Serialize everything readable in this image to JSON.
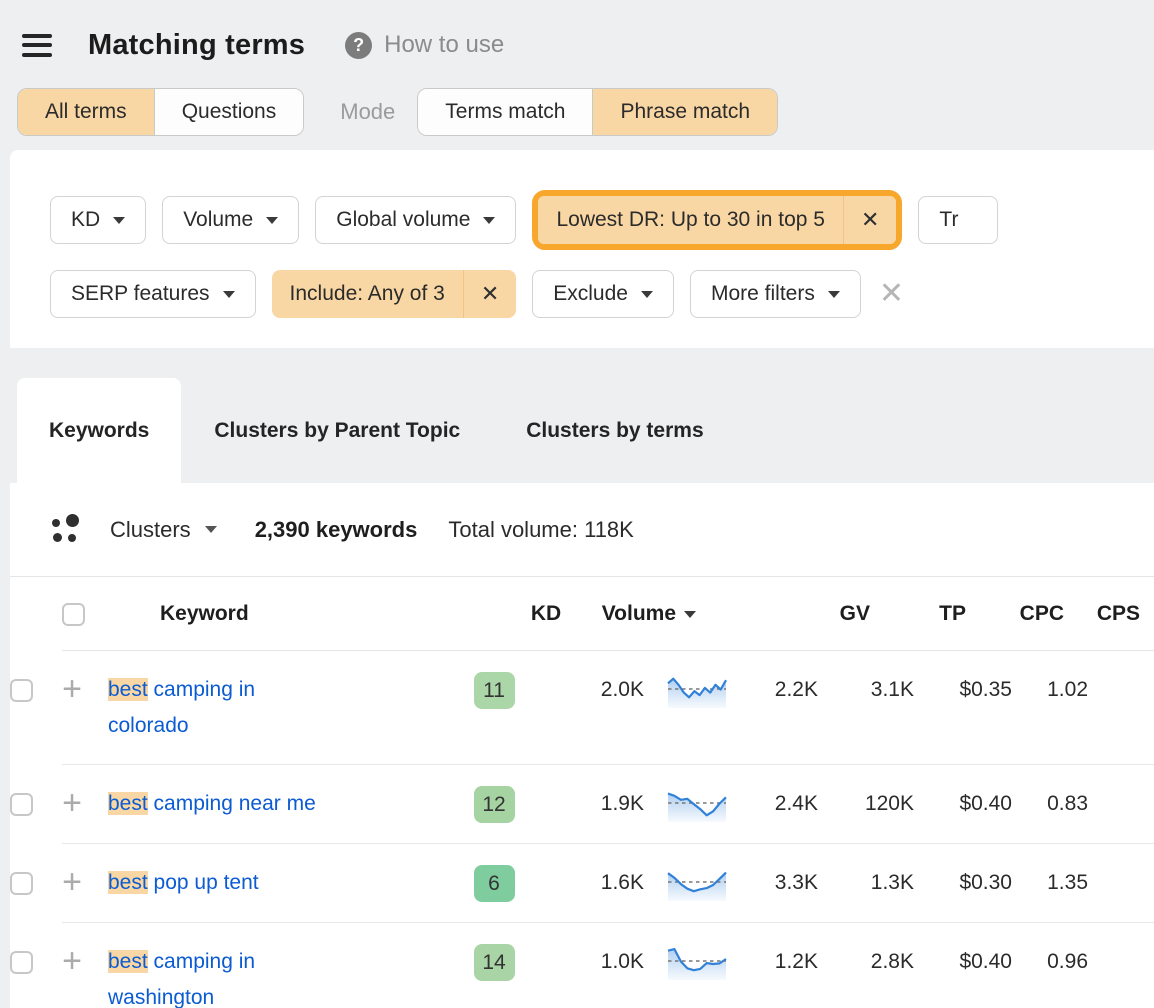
{
  "colors": {
    "accent_peach": "#f9d7a4",
    "highlight_ring": "#f6a72c",
    "link_blue": "#0b5bd3",
    "trend_blue": "#3181d8",
    "badge_green_light": "#abd6a8",
    "badge_green_strong": "#7fcc9e"
  },
  "header": {
    "title": "Matching terms",
    "help_icon": "?",
    "help_label": "How to use"
  },
  "toggles": {
    "scope": [
      {
        "label": "All terms",
        "selected": true
      },
      {
        "label": "Questions",
        "selected": false
      }
    ],
    "mode_label": "Mode",
    "mode": [
      {
        "label": "Terms match",
        "selected": false
      },
      {
        "label": "Phrase match",
        "selected": true
      }
    ]
  },
  "filters": {
    "kd": "KD",
    "volume": "Volume",
    "global_volume": "Global volume",
    "lowest_dr": "Lowest DR: Up to 30 in top 5",
    "truncated_btn": "Tr",
    "serp_features": "SERP features",
    "include": "Include: Any of 3",
    "exclude": "Exclude",
    "more_filters": "More filters",
    "remove_icon": "✕",
    "clear_all_icon": "✕"
  },
  "tabs": [
    {
      "label": "Keywords",
      "active": true
    },
    {
      "label": "Clusters by Parent Topic",
      "active": false
    },
    {
      "label": "Clusters by terms",
      "active": false
    }
  ],
  "toolbar": {
    "clusters_label": "Clusters",
    "keywords_count": "2,390 keywords",
    "total_volume": "Total volume: 118K"
  },
  "table": {
    "columns": {
      "keyword": "Keyword",
      "kd": "KD",
      "volume": "Volume",
      "gv": "GV",
      "tp": "TP",
      "cpc": "CPC",
      "cps": "CPS"
    },
    "sorted_by": "Volume",
    "rows": [
      {
        "kw_hl": "best",
        "kw_rest": " camping in colorado",
        "kd": "11",
        "kd_color": "#abd6a8",
        "volume": "2.0K",
        "gv": "2.2K",
        "tp": "3.1K",
        "cpc": "$0.35",
        "cps": "1.02",
        "trend": [
          30,
          15,
          35,
          60,
          75,
          55,
          68,
          45,
          60,
          35,
          50,
          20
        ]
      },
      {
        "kw_hl": "best",
        "kw_rest": " camping near me",
        "kd": "12",
        "kd_color": "#a5d3a2",
        "volume": "1.9K",
        "gv": "2.4K",
        "tp": "120K",
        "cpc": "$0.40",
        "cps": "0.83",
        "trend": [
          18,
          25,
          38,
          35,
          52,
          68,
          88,
          75,
          50,
          30
        ]
      },
      {
        "kw_hl": "best",
        "kw_rest": " pop up tent",
        "kd": "6",
        "kd_color": "#7fcc9e",
        "volume": "1.6K",
        "gv": "3.3K",
        "tp": "1.3K",
        "cpc": "$0.30",
        "cps": "1.35",
        "trend": [
          20,
          35,
          55,
          70,
          78,
          72,
          68,
          58,
          38,
          18
        ]
      },
      {
        "kw_hl": "best",
        "kw_rest": " camping in washington",
        "kd": "14",
        "kd_color": "#a9d5a6",
        "volume": "1.0K",
        "gv": "1.2K",
        "tp": "2.8K",
        "cpc": "$0.40",
        "cps": "0.96",
        "trend": [
          15,
          10,
          50,
          72,
          78,
          74,
          55,
          58,
          56,
          42
        ]
      }
    ]
  }
}
